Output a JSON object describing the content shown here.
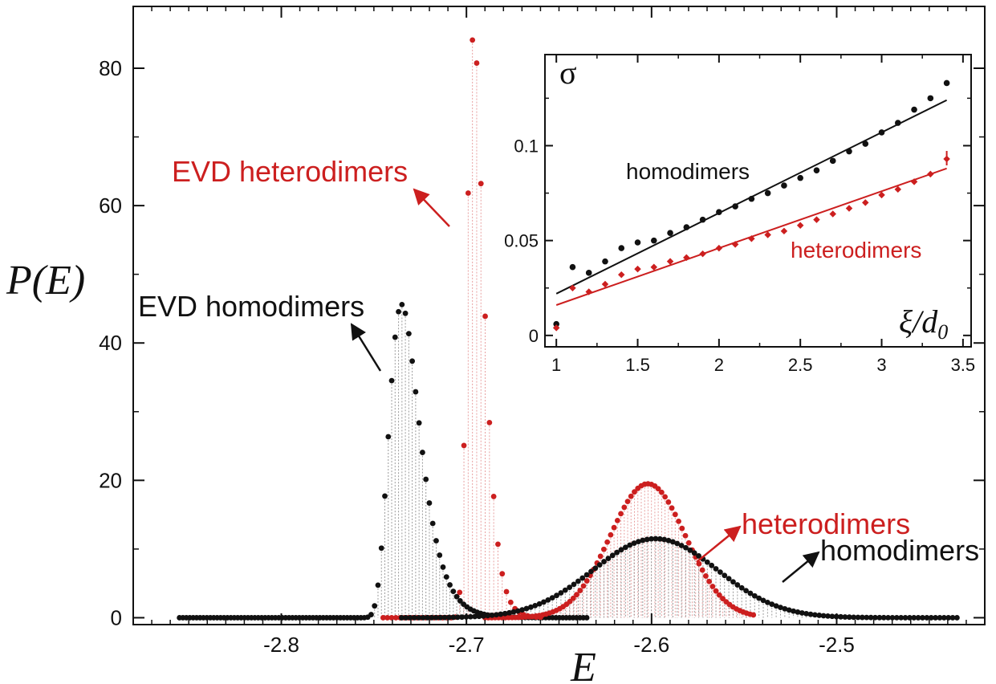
{
  "chart_data": [
    {
      "type": "scatter",
      "title": "",
      "xlabel": "E",
      "ylabel": "P(E)",
      "xlim": [
        -2.88,
        -2.42
      ],
      "ylim": [
        -1,
        89
      ],
      "xticks": [
        -2.8,
        -2.7,
        -2.6,
        -2.5
      ],
      "xtick_labels": [
        "-2.8",
        "-2.7",
        "-2.6",
        "-2.5"
      ],
      "yticks": [
        0,
        20,
        40,
        60,
        80
      ],
      "ytick_labels": [
        "0",
        "20",
        "40",
        "60",
        "80"
      ],
      "grid": false,
      "series": [
        {
          "name": "EVD homodimers",
          "color": "#111111",
          "dist": "gumbel",
          "mode": -2.735,
          "beta": 0.0081,
          "peak": 45.6,
          "x_range": [
            -2.855,
            -2.635
          ],
          "n_points": 120
        },
        {
          "name": "EVD heterodimers",
          "color": "#cc1f1f",
          "dist": "gumbel",
          "mode": -2.696,
          "beta": 0.0043,
          "peak": 85.5,
          "x_range": [
            -2.745,
            -2.66
          ],
          "n_points": 38
        },
        {
          "name": "heterodimers",
          "color": "#cc1f1f",
          "dist": "gaussian",
          "mean": -2.602,
          "sigma": 0.0205,
          "peak": 19.5,
          "x_range": [
            -2.69,
            -2.545
          ],
          "n_points": 80
        },
        {
          "name": "homodimers",
          "color": "#111111",
          "dist": "gaussian",
          "mean": -2.598,
          "sigma": 0.0335,
          "peak": 11.5,
          "x_range": [
            -2.735,
            -2.435
          ],
          "n_points": 130
        }
      ],
      "annotations": [
        {
          "text": "EVD heterodimers",
          "color": "#cc1f1f"
        },
        {
          "text": "EVD homodimers",
          "color": "#111111"
        },
        {
          "text": "heterodimers",
          "color": "#cc1f1f"
        },
        {
          "text": "homodimers",
          "color": "#111111"
        }
      ]
    },
    {
      "type": "scatter",
      "title": "",
      "xlabel": "ξ/d0",
      "ylabel": "σ",
      "xlim": [
        0.93,
        3.55
      ],
      "ylim": [
        -0.006,
        0.148
      ],
      "xticks": [
        1,
        1.5,
        2,
        2.5,
        3,
        3.5
      ],
      "xtick_labels": [
        "1",
        "1.5",
        "2",
        "2.5",
        "3",
        "3.5"
      ],
      "yticks": [
        0,
        0.05,
        0.1
      ],
      "ytick_labels": [
        "0",
        "0.05",
        "0.1"
      ],
      "grid": false,
      "series": [
        {
          "name": "homodimers",
          "color": "#111111",
          "x": [
            1.0,
            1.1,
            1.2,
            1.3,
            1.4,
            1.5,
            1.6,
            1.7,
            1.8,
            1.9,
            2.0,
            2.1,
            2.2,
            2.3,
            2.4,
            2.5,
            2.6,
            2.7,
            2.8,
            2.9,
            3.0,
            3.1,
            3.2,
            3.3,
            3.4
          ],
          "y": [
            0.006,
            0.036,
            0.033,
            0.039,
            0.046,
            0.049,
            0.05,
            0.054,
            0.057,
            0.061,
            0.065,
            0.068,
            0.072,
            0.075,
            0.079,
            0.083,
            0.087,
            0.092,
            0.097,
            0.101,
            0.107,
            0.112,
            0.119,
            0.125,
            0.133
          ],
          "fit": [
            [
              1.0,
              0.022
            ],
            [
              3.4,
              0.124
            ]
          ]
        },
        {
          "name": "heterodimers",
          "color": "#cc1f1f",
          "x": [
            1.0,
            1.1,
            1.2,
            1.3,
            1.4,
            1.5,
            1.6,
            1.7,
            1.8,
            1.9,
            2.0,
            2.1,
            2.2,
            2.3,
            2.4,
            2.5,
            2.6,
            2.7,
            2.8,
            2.9,
            3.0,
            3.1,
            3.2,
            3.3,
            3.4
          ],
          "y": [
            0.004,
            0.025,
            0.023,
            0.027,
            0.032,
            0.035,
            0.036,
            0.039,
            0.041,
            0.043,
            0.046,
            0.048,
            0.051,
            0.053,
            0.055,
            0.058,
            0.061,
            0.064,
            0.067,
            0.07,
            0.074,
            0.077,
            0.081,
            0.085,
            0.093
          ],
          "fit": [
            [
              1.0,
              0.016
            ],
            [
              3.4,
              0.088
            ]
          ]
        }
      ],
      "annotations": [
        {
          "text": "homodimers",
          "color": "#111111"
        },
        {
          "text": "heterodimers",
          "color": "#cc1f1f"
        }
      ]
    }
  ]
}
